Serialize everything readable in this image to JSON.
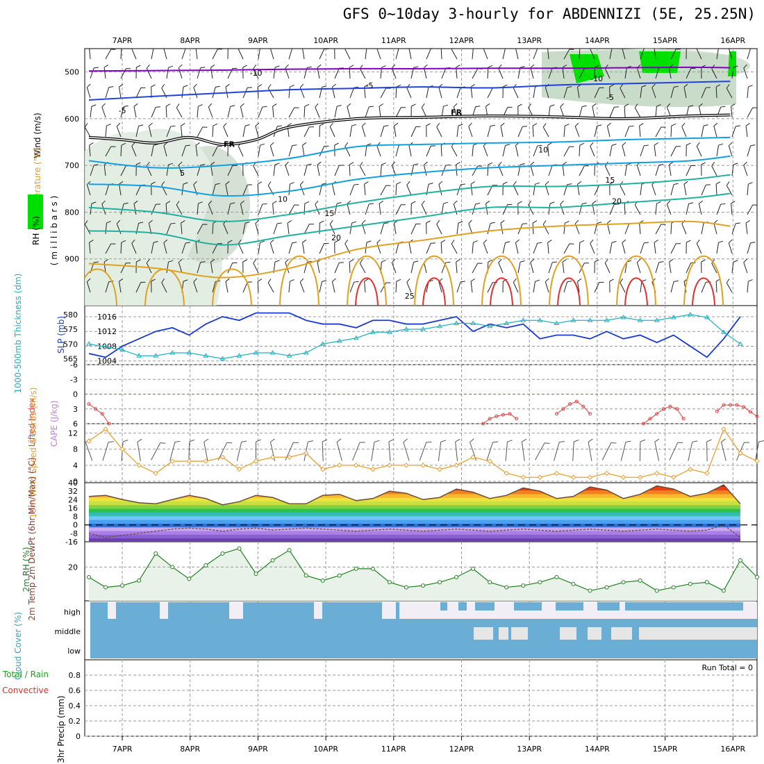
{
  "title": "GFS 0~10day 3-hourly for ABDENNIZI (5E, 25.25N)",
  "colors": {
    "temperature_cold": "#8000c0",
    "temperature_cool": "#2040e0",
    "temperature_mild": "#10a0e0",
    "temperature_warm": "#20b0a0",
    "temperature_hot": "#e0a020",
    "temperature_vhot": "#e03030",
    "rh_fill": "#d8e8d8",
    "rh_high": "#00e000",
    "slp": "#1a3ad0",
    "thickness": "#20b0c0",
    "lifted_index": "#e04040",
    "cape": "#c080e0",
    "wind10m": "#e8a030",
    "rh2m": "#208020",
    "cloud": "#6aaed6",
    "cloud_high": "#f2eef6",
    "cloud_mid": "#e6e6e6",
    "precip_total": "#20a020",
    "precip_conv": "#e03030"
  },
  "chart_data": [
    {
      "type": "line",
      "id": "upper-air",
      "xcategories": [
        "7APR",
        "8APR",
        "9APR",
        "10APR",
        "11APR",
        "12APR",
        "13APR",
        "14APR",
        "15APR",
        "16APR"
      ],
      "xlabel": "",
      "ylabel": "(millibars)",
      "ylim": [
        1000,
        450
      ],
      "yticks": [
        500,
        600,
        700,
        800,
        900
      ],
      "legend_labels": [
        "Wind (m/s)",
        "Temperature (°C)",
        "RH (%)"
      ],
      "isotherm_labels": [
        {
          "day": 2.5,
          "p": 508,
          "text": "-10"
        },
        {
          "day": 7.6,
          "p": 520,
          "text": "-10"
        },
        {
          "day": 4.2,
          "p": 535,
          "text": "-5"
        },
        {
          "day": 7.8,
          "p": 560,
          "text": "-5"
        },
        {
          "day": 0.5,
          "p": 588,
          "text": "-5"
        },
        {
          "day": 5.5,
          "p": 592,
          "text": "FR"
        },
        {
          "day": 2.1,
          "p": 660,
          "text": "FR"
        },
        {
          "day": 1.4,
          "p": 722,
          "text": "5"
        },
        {
          "day": 6.8,
          "p": 672,
          "text": "10"
        },
        {
          "day": 2.9,
          "p": 778,
          "text": "10"
        },
        {
          "day": 7.8,
          "p": 737,
          "text": "15"
        },
        {
          "day": 3.6,
          "p": 808,
          "text": "15"
        },
        {
          "day": 7.9,
          "p": 782,
          "text": "20"
        },
        {
          "day": 3.7,
          "p": 860,
          "text": "20"
        },
        {
          "day": 4.8,
          "p": 985,
          "text": "25"
        }
      ],
      "series": [
        {
          "level": -10,
          "x": [
            0,
            1,
            2,
            3,
            4,
            5,
            6,
            7,
            8,
            9,
            9.6
          ],
          "p": [
            498,
            497,
            496,
            494,
            493,
            493,
            492,
            492,
            491,
            490,
            491
          ]
        },
        {
          "level": -5,
          "x": [
            0,
            1,
            2,
            3,
            4,
            5,
            6,
            7,
            8,
            9,
            9.6
          ],
          "p": [
            560,
            552,
            545,
            538,
            535,
            532,
            534,
            528,
            525,
            522,
            520
          ]
        },
        {
          "level": 0,
          "x": [
            0,
            0.5,
            1,
            1.5,
            2,
            2.5,
            3,
            4,
            5,
            6,
            7,
            8,
            9,
            9.6
          ],
          "p": [
            640,
            645,
            652,
            640,
            655,
            645,
            618,
            600,
            597,
            594,
            596,
            600,
            594,
            592
          ]
        },
        {
          "level": 5,
          "x": [
            0,
            1,
            2,
            3,
            4,
            5,
            6,
            7,
            8,
            9,
            9.6
          ],
          "p": [
            690,
            705,
            700,
            685,
            660,
            655,
            652,
            650,
            645,
            642,
            640
          ]
        },
        {
          "level": 10,
          "x": [
            0,
            1,
            2,
            3,
            4,
            5,
            6,
            7,
            8,
            9,
            9.6
          ],
          "p": [
            740,
            745,
            765,
            755,
            730,
            715,
            705,
            700,
            695,
            690,
            680
          ]
        },
        {
          "level": 15,
          "x": [
            0,
            1,
            2,
            3,
            4,
            5,
            6,
            7,
            8,
            9,
            9.6
          ],
          "p": [
            790,
            800,
            820,
            805,
            780,
            760,
            745,
            745,
            740,
            730,
            720
          ]
        },
        {
          "level": 20,
          "x": [
            0,
            1,
            2,
            3,
            4,
            5,
            6,
            7,
            8,
            9,
            9.6
          ],
          "p": [
            840,
            845,
            870,
            850,
            830,
            810,
            790,
            790,
            780,
            770,
            760
          ]
        },
        {
          "level": 25,
          "x": [
            0,
            1,
            2,
            3,
            4,
            5,
            6,
            7,
            8,
            9,
            9.6
          ],
          "p": [
            910,
            920,
            940,
            920,
            880,
            860,
            840,
            830,
            825,
            820,
            830
          ]
        }
      ]
    },
    {
      "type": "line",
      "id": "slp-thickness",
      "left_ylabel": "1000-500mb Thickness (dm)",
      "right_ylabel": "SLP (mb)",
      "left_ticks": [
        565,
        570,
        575,
        580
      ],
      "right_ticks": [
        1004,
        1008,
        1012,
        1016
      ],
      "left_ylim": [
        563,
        583
      ],
      "right_ylim": [
        1003,
        1019
      ],
      "x": [
        0,
        0.25,
        0.5,
        0.75,
        1,
        1.25,
        1.5,
        1.75,
        2,
        2.25,
        2.5,
        2.75,
        3,
        3.25,
        3.5,
        3.75,
        4,
        4.25,
        4.5,
        4.75,
        5,
        5.25,
        5.5,
        5.75,
        6,
        6.25,
        6.5,
        6.75,
        7,
        7.25,
        7.5,
        7.75,
        8,
        8.25,
        8.5,
        8.75,
        9,
        9.25,
        9.5,
        9.75
      ],
      "series": [
        {
          "name": "SLP",
          "axis": "right",
          "values": [
            1006,
            1005,
            1008,
            1010,
            1012,
            1013,
            1011,
            1014,
            1016,
            1015,
            1017,
            1017,
            1017,
            1015,
            1014,
            1014,
            1013,
            1015,
            1015,
            1014,
            1014,
            1015,
            1016,
            1012,
            1014,
            1013,
            1014,
            1010,
            1011,
            1011,
            1010,
            1012,
            1010,
            1011,
            1009,
            1011,
            1008,
            1005,
            1010,
            1016
          ]
        },
        {
          "name": "Thickness",
          "axis": "left",
          "values": [
            570,
            569,
            568,
            566,
            566,
            567,
            567,
            566,
            565,
            566,
            567,
            567,
            566,
            567,
            570,
            571,
            572,
            574,
            574,
            575,
            575,
            576,
            577,
            577,
            576,
            577,
            578,
            578,
            577,
            578,
            578,
            578,
            579,
            578,
            578,
            579,
            580,
            579,
            574,
            570
          ]
        }
      ]
    },
    {
      "type": "line",
      "id": "li-cape",
      "left_ylabel": "Lifted Index",
      "right_ylabel": "CAPE (J/kg)",
      "left_ticks": [
        6,
        3,
        0,
        -3,
        -6
      ],
      "ylim": [
        6,
        -6
      ],
      "series": [
        {
          "name": "Lifted Index",
          "x": [
            0,
            0.1,
            0.2,
            0.3,
            5.9,
            6,
            6.1,
            6.2,
            6.3,
            6.4,
            7,
            7.1,
            7.2,
            7.3,
            7.4,
            7.5,
            8.3,
            8.4,
            8.5,
            8.6,
            8.7,
            8.8,
            8.9,
            9.4,
            9.5,
            9.6,
            9.7,
            9.8,
            9.9,
            10
          ],
          "values": [
            2,
            3,
            4,
            6,
            6,
            5,
            4.5,
            4.2,
            4,
            5,
            4,
            3,
            2,
            1.5,
            2.5,
            4,
            6,
            5,
            4,
            3,
            2.5,
            3,
            5,
            3.5,
            2.2,
            2.2,
            2.2,
            2.6,
            3.6,
            4.5
          ]
        }
      ]
    },
    {
      "type": "line",
      "id": "wind10m",
      "ylabel": "10m Wind Speed & Barbs (m/s)",
      "yticks": [
        0,
        4,
        8,
        12
      ],
      "ylim": [
        0,
        14
      ],
      "x": [
        0,
        0.25,
        0.5,
        0.75,
        1,
        1.25,
        1.5,
        1.75,
        2,
        2.25,
        2.5,
        2.75,
        3,
        3.25,
        3.5,
        3.75,
        4,
        4.25,
        4.5,
        4.75,
        5,
        5.25,
        5.5,
        5.75,
        6,
        6.25,
        6.5,
        6.75,
        7,
        7.25,
        7.5,
        7.75,
        8,
        8.25,
        8.5,
        8.75,
        9,
        9.25,
        9.5,
        9.75,
        10
      ],
      "series": [
        {
          "name": "10m Wind Speed",
          "values": [
            10,
            13,
            8,
            4,
            2,
            5,
            5,
            5,
            6,
            3,
            5,
            6,
            6,
            7,
            3,
            4,
            4,
            3,
            4,
            4,
            4,
            3,
            4,
            6,
            5,
            2,
            1,
            1,
            2,
            1,
            1,
            2,
            1,
            1,
            2,
            1,
            3,
            2,
            13,
            7,
            5
          ]
        }
      ]
    },
    {
      "type": "area",
      "id": "temp2m",
      "ylabel": "2m Temp 2m DewPt (6hr Min/Max) (°C)",
      "yticks": [
        40,
        32,
        24,
        16,
        8,
        0,
        -8,
        -16
      ],
      "ylim": [
        -16,
        40
      ],
      "x": [
        0,
        0.25,
        0.5,
        0.75,
        1,
        1.25,
        1.5,
        1.75,
        2,
        2.25,
        2.5,
        2.75,
        3,
        3.25,
        3.5,
        3.75,
        4,
        4.25,
        4.5,
        4.75,
        5,
        5.25,
        5.5,
        5.75,
        6,
        6.25,
        6.5,
        6.75,
        7,
        7.25,
        7.5,
        7.75,
        8,
        8.25,
        8.5,
        8.75,
        9,
        9.25,
        9.5,
        9.75
      ],
      "series": [
        {
          "name": "2m Temp",
          "values": [
            27,
            28,
            24,
            21,
            20,
            24,
            28,
            25,
            19,
            22,
            28,
            26,
            20,
            20,
            28,
            29,
            23,
            25,
            32,
            30,
            24,
            26,
            34,
            31,
            25,
            28,
            35,
            32,
            25,
            27,
            36,
            33,
            25,
            29,
            37,
            34,
            27,
            30,
            38,
            20
          ]
        },
        {
          "name": "2m DewPt",
          "values": [
            -8,
            -12,
            -10,
            -8,
            -6,
            -4,
            -3,
            -4,
            -6,
            -4,
            -3,
            -5,
            -4,
            -3,
            -4,
            -5,
            -6,
            -5,
            -4,
            -5,
            -6,
            -5,
            -4,
            -5,
            -6,
            -5,
            -4,
            -5,
            -6,
            -5,
            -4,
            -5,
            -6,
            -5,
            -4,
            -5,
            -6,
            -5,
            0,
            -12
          ]
        }
      ]
    },
    {
      "type": "area",
      "id": "rh2m",
      "ylabel": "2m RH (%)",
      "yticks": [
        20
      ],
      "ylim": [
        0,
        35
      ],
      "x": [
        0,
        0.25,
        0.5,
        0.75,
        1,
        1.25,
        1.5,
        1.75,
        2,
        2.25,
        2.5,
        2.75,
        3,
        3.25,
        3.5,
        3.75,
        4,
        4.25,
        4.5,
        4.75,
        5,
        5.25,
        5.5,
        5.75,
        6,
        6.25,
        6.5,
        6.75,
        7,
        7.25,
        7.5,
        7.75,
        8,
        8.25,
        8.5,
        8.75,
        9,
        9.25,
        9.5,
        9.75,
        10
      ],
      "series": [
        {
          "name": "2m RH",
          "values": [
            14,
            8,
            9,
            12,
            28,
            20,
            13,
            21,
            28,
            31,
            16,
            24,
            30,
            15,
            12,
            15,
            19,
            19,
            11,
            8,
            9,
            11,
            14,
            19,
            11,
            8,
            9,
            11,
            14,
            10,
            6,
            8,
            11,
            12,
            6,
            8,
            10,
            11,
            6,
            24,
            14
          ]
        }
      ]
    },
    {
      "type": "bar",
      "id": "cloud",
      "ylabel": "Cloud Cover (%)",
      "levels": [
        "high",
        "middle",
        "low"
      ]
    },
    {
      "type": "bar",
      "id": "precip",
      "left_labels": [
        "Total / Rain",
        "Convective"
      ],
      "ylabel": "3hr Precip (mm)",
      "yticks": [
        0,
        0.2,
        0.4,
        0.6,
        0.8
      ],
      "ylim": [
        0,
        1
      ],
      "run_total_label": "Run Total = 0",
      "values": []
    }
  ]
}
